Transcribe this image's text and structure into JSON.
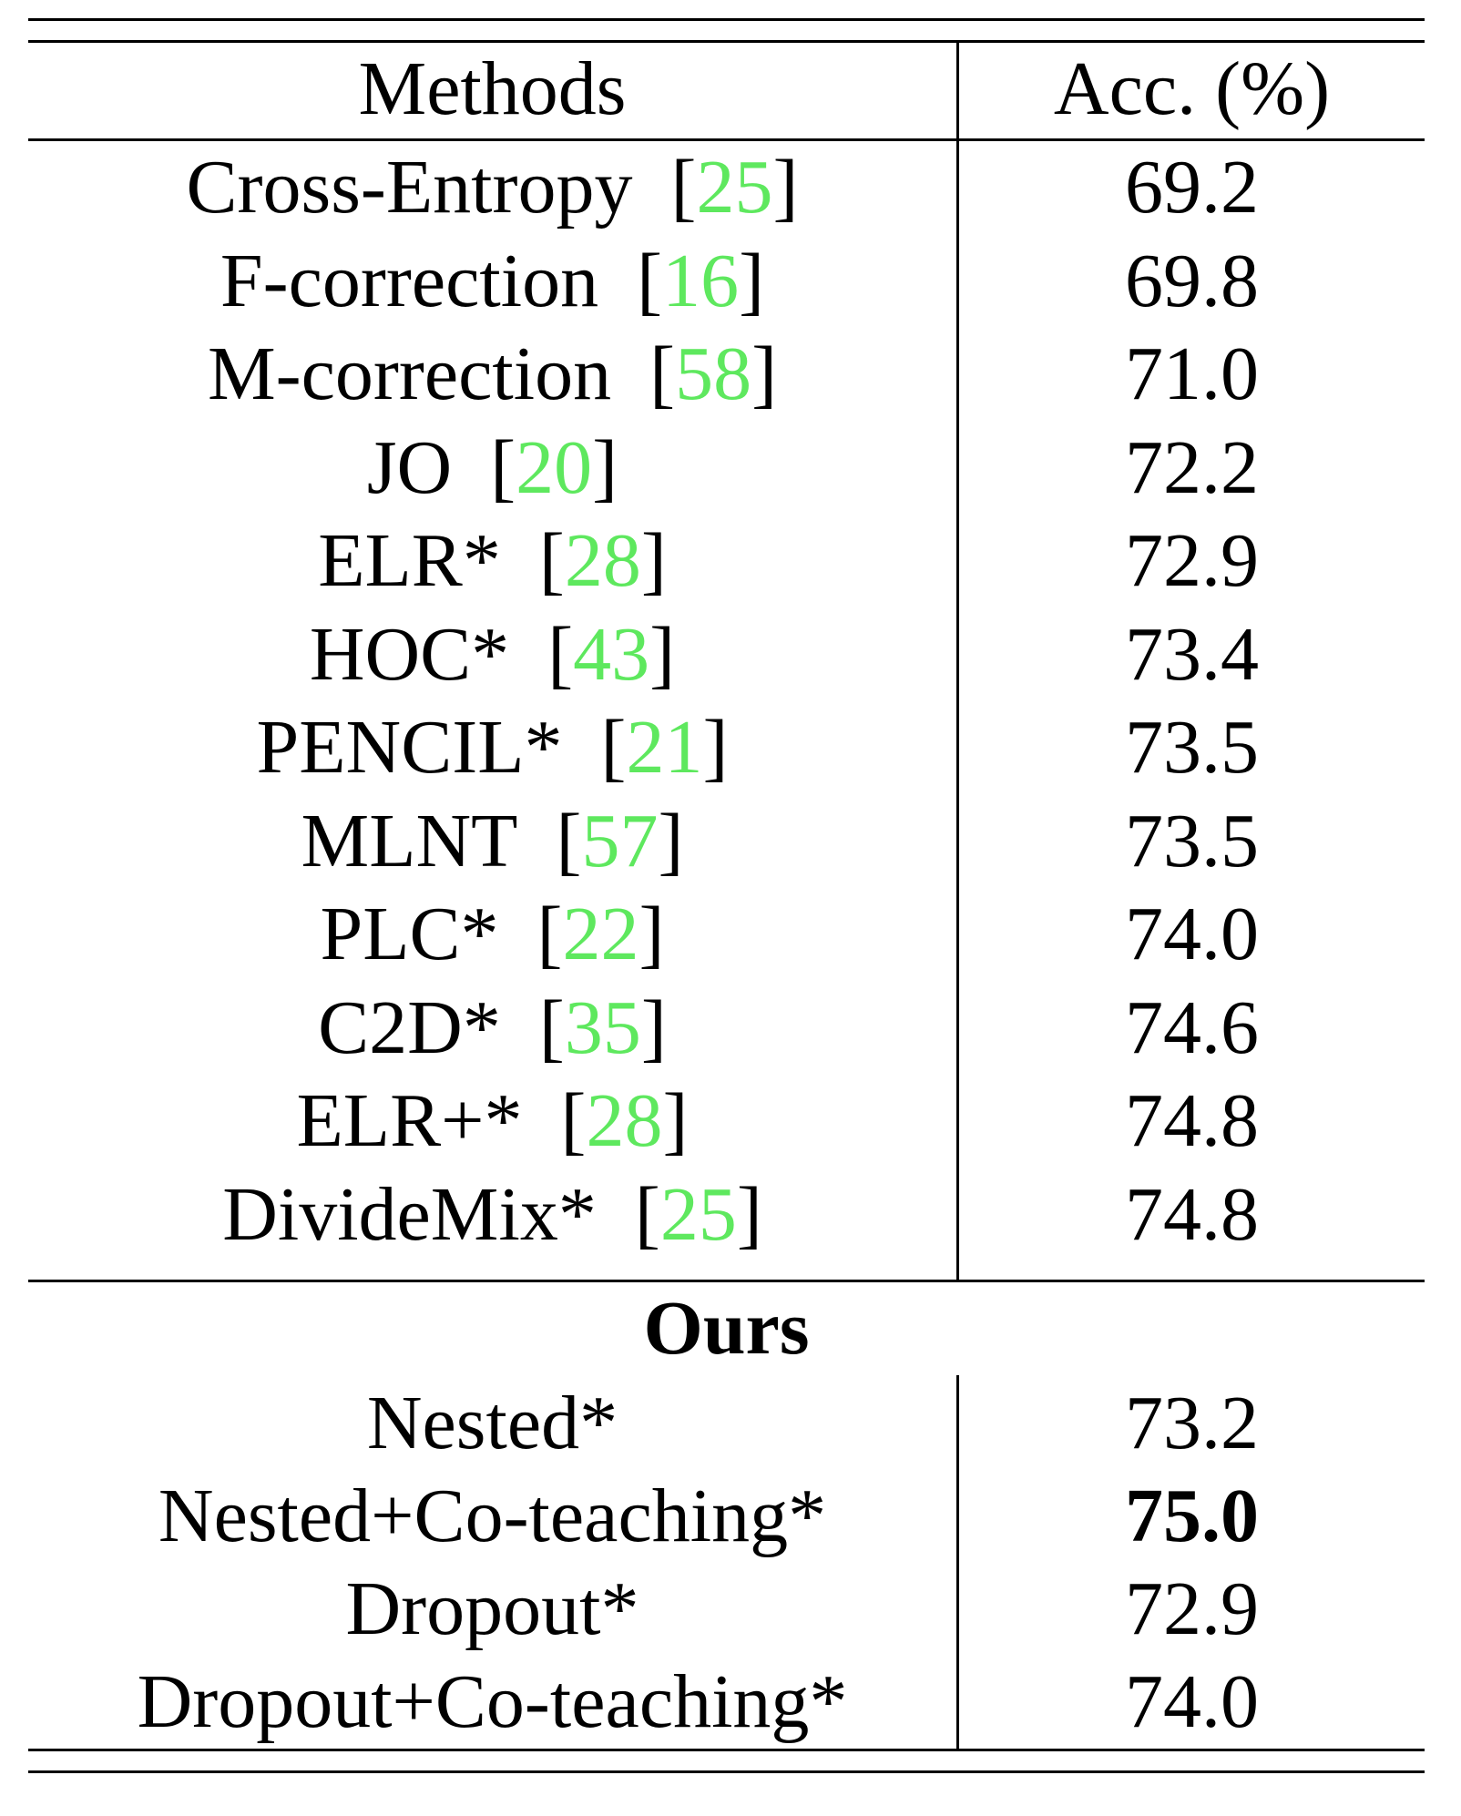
{
  "header": {
    "methods": "Methods",
    "acc": "Acc. (%)"
  },
  "baselines": [
    {
      "name": "Cross-Entropy",
      "cite": "25",
      "acc": "69.2"
    },
    {
      "name": "F-correction",
      "cite": "16",
      "acc": "69.8"
    },
    {
      "name": "M-correction",
      "cite": "58",
      "acc": "71.0"
    },
    {
      "name": "JO",
      "cite": "20",
      "acc": "72.2"
    },
    {
      "name": "ELR*",
      "cite": "28",
      "acc": "72.9"
    },
    {
      "name": "HOC*",
      "cite": "43",
      "acc": "73.4"
    },
    {
      "name": "PENCIL*",
      "cite": "21",
      "acc": "73.5"
    },
    {
      "name": "MLNT",
      "cite": "57",
      "acc": "73.5"
    },
    {
      "name": "PLC*",
      "cite": "22",
      "acc": "74.0"
    },
    {
      "name": "C2D*",
      "cite": "35",
      "acc": "74.6"
    },
    {
      "name": "ELR+*",
      "cite": "28",
      "acc": "74.8"
    },
    {
      "name": "DivideMix*",
      "cite": "25",
      "acc": "74.8"
    }
  ],
  "ours_label": "Ours",
  "ours": [
    {
      "name": "Nested*",
      "acc": "73.2",
      "bold": false
    },
    {
      "name": "Nested+Co-teaching*",
      "acc": "75.0",
      "bold": true
    },
    {
      "name": "Dropout*",
      "acc": "72.9",
      "bold": false
    },
    {
      "name": "Dropout+Co-teaching*",
      "acc": "74.0",
      "bold": false
    }
  ],
  "colors": {
    "citation": "#5ee85e",
    "text": "#000000"
  }
}
